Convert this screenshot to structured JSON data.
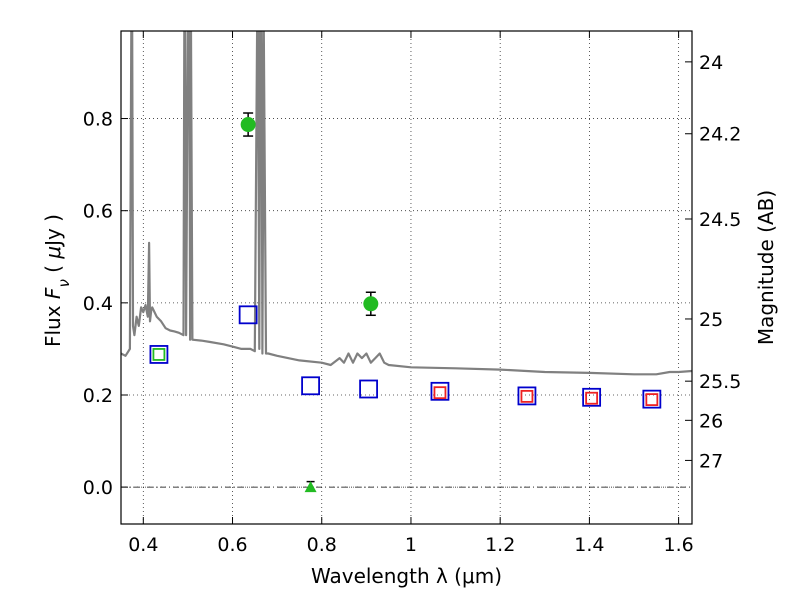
{
  "chart_data": {
    "type": "scatter",
    "title": "",
    "xlabel": "Wavelength  λ (μm)",
    "ylabel": "Flux  F_ν  ( μJy )",
    "ylabel_right": "Magnitude (AB)",
    "xlim": [
      0.35,
      1.63
    ],
    "ylim": [
      -0.08,
      0.99
    ],
    "grid": true,
    "x_ticks": [
      {
        "value": 0.4,
        "label": "0.4"
      },
      {
        "value": 0.6,
        "label": "0.6"
      },
      {
        "value": 0.8,
        "label": "0.8"
      },
      {
        "value": 1.0,
        "label": "1"
      },
      {
        "value": 1.2,
        "label": "1.2"
      },
      {
        "value": 1.4,
        "label": "1.4"
      },
      {
        "value": 1.6,
        "label": "1.6"
      }
    ],
    "y_ticks": [
      {
        "value": 0.0,
        "label": "0.0"
      },
      {
        "value": 0.2,
        "label": "0.2"
      },
      {
        "value": 0.4,
        "label": "0.4"
      },
      {
        "value": 0.6,
        "label": "0.6"
      },
      {
        "value": 0.8,
        "label": "0.8"
      }
    ],
    "right_ticks": [
      {
        "flux": 0.923,
        "label": "24"
      },
      {
        "flux": 0.767,
        "label": "24.2"
      },
      {
        "flux": 0.582,
        "label": "24.5"
      },
      {
        "flux": 0.365,
        "label": "25"
      },
      {
        "flux": 0.23,
        "label": "25.5"
      },
      {
        "flux": 0.145,
        "label": "26"
      },
      {
        "flux": 0.058,
        "label": "27"
      }
    ],
    "series": [
      {
        "kind": "observed_detection",
        "marker": "circle",
        "color": "#22bb22",
        "points": [
          {
            "x": 0.635,
            "y": 0.787,
            "yerr": 0.025
          },
          {
            "x": 0.91,
            "y": 0.398,
            "yerr": 0.025
          }
        ]
      },
      {
        "kind": "upper_limit",
        "marker": "triangle",
        "color": "#22bb22",
        "points": [
          {
            "x": 0.775,
            "y": 0.0,
            "yerr": 0.012
          }
        ]
      },
      {
        "kind": "model_photometry",
        "marker": "square",
        "color": "#0000cc",
        "points": [
          {
            "x": 0.435,
            "y": 0.288
          },
          {
            "x": 0.635,
            "y": 0.374
          },
          {
            "x": 0.775,
            "y": 0.22
          },
          {
            "x": 0.905,
            "y": 0.213
          },
          {
            "x": 1.065,
            "y": 0.208
          },
          {
            "x": 1.26,
            "y": 0.198
          },
          {
            "x": 1.405,
            "y": 0.195
          },
          {
            "x": 1.54,
            "y": 0.191
          }
        ]
      },
      {
        "kind": "model_photometry_inner",
        "marker": "square",
        "color": "#ee2222",
        "points": [
          {
            "x": 1.065,
            "y": 0.205
          },
          {
            "x": 1.26,
            "y": 0.197
          },
          {
            "x": 1.405,
            "y": 0.193
          },
          {
            "x": 1.54,
            "y": 0.19
          }
        ]
      },
      {
        "kind": "model_photometry_inner",
        "marker": "square",
        "color": "#22bb22",
        "points": [
          {
            "x": 0.435,
            "y": 0.288
          }
        ]
      },
      {
        "kind": "model_spectrum",
        "marker": "line",
        "color": "#808080",
        "x": [
          0.35,
          0.36,
          0.37,
          0.373,
          0.375,
          0.377,
          0.38,
          0.385,
          0.39,
          0.395,
          0.4,
          0.405,
          0.41,
          0.413,
          0.415,
          0.418,
          0.42,
          0.43,
          0.44,
          0.45,
          0.46,
          0.47,
          0.48,
          0.49,
          0.492,
          0.494,
          0.496,
          0.5,
          0.503,
          0.505,
          0.507,
          0.51,
          0.53,
          0.55,
          0.58,
          0.6,
          0.62,
          0.64,
          0.65,
          0.655,
          0.657,
          0.66,
          0.662,
          0.665,
          0.667,
          0.67,
          0.675,
          0.68,
          0.7,
          0.75,
          0.8,
          0.82,
          0.84,
          0.85,
          0.86,
          0.87,
          0.88,
          0.89,
          0.9,
          0.91,
          0.92,
          0.93,
          0.94,
          0.95,
          1.0,
          1.1,
          1.2,
          1.3,
          1.4,
          1.5,
          1.55,
          1.58,
          1.6,
          1.63
        ],
        "y": [
          0.29,
          0.285,
          0.3,
          0.99,
          0.99,
          0.35,
          0.33,
          0.37,
          0.35,
          0.39,
          0.38,
          0.395,
          0.37,
          0.53,
          0.36,
          0.385,
          0.39,
          0.37,
          0.36,
          0.345,
          0.34,
          0.338,
          0.335,
          0.33,
          0.99,
          0.99,
          0.33,
          0.99,
          0.99,
          0.32,
          0.99,
          0.32,
          0.318,
          0.315,
          0.31,
          0.305,
          0.3,
          0.3,
          0.295,
          0.99,
          0.99,
          0.3,
          0.99,
          0.99,
          0.29,
          0.99,
          0.29,
          0.29,
          0.285,
          0.275,
          0.27,
          0.265,
          0.28,
          0.27,
          0.29,
          0.27,
          0.29,
          0.28,
          0.29,
          0.27,
          0.28,
          0.29,
          0.27,
          0.265,
          0.26,
          0.258,
          0.255,
          0.25,
          0.248,
          0.245,
          0.245,
          0.25,
          0.25,
          0.252
        ]
      }
    ]
  }
}
